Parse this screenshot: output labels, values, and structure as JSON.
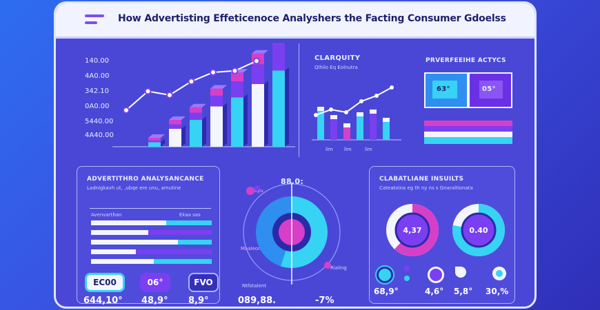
{
  "header": {
    "title": "How Advertisting Effeticenoce Analyshers the Facting Consumer Gdoelss"
  },
  "top_left_chart": {
    "y_ticks": [
      "140.00",
      "4A0.00",
      "342.10",
      "0A0.00",
      "5440.00",
      "4A40.00"
    ],
    "series": [
      {
        "name": "cyan",
        "values": [
          0.05,
          0.2,
          0.3,
          0.45,
          0.55,
          0.7,
          0.85
        ]
      },
      {
        "name": "violet",
        "values": [
          0.02,
          0.05,
          0.08,
          0.12,
          0.18,
          0.22,
          0.3
        ]
      },
      {
        "name": "pink",
        "values": [
          0.03,
          0.05,
          0.06,
          0.08,
          0.1,
          0.12,
          0.15
        ]
      }
    ],
    "line": [
      0.3,
      0.55,
      0.5,
      0.68,
      0.8,
      0.82,
      0.95
    ]
  },
  "clarity_panel": {
    "title": "CLARQUITY",
    "subtitle": "Qlhilo Eq Eolnutra",
    "x_ticks": [
      "lim",
      "lim",
      "lim"
    ],
    "bars": [
      0.6,
      0.45,
      0.3,
      0.5,
      0.55,
      0.4
    ],
    "line": [
      0.45,
      0.55,
      0.5,
      0.7,
      0.8,
      0.95
    ]
  },
  "metrics_panel": {
    "title": "PRVERFEEIHE ACTYCS",
    "tile1": "63°",
    "tile2": "05°"
  },
  "advertising_panel": {
    "title": "ADVERTITHRO ANALYSANCANCE",
    "subtitle": "Ladnigkavh ut, ,ubqe ere unu, amutine",
    "col1": "Avenvarthan",
    "col2": "Ekaa sas",
    "bar_levels": [
      0.85,
      0.7,
      0.95,
      0.6,
      0.75
    ]
  },
  "summary_pills": [
    {
      "label": "EC00",
      "value": "644,10°"
    },
    {
      "label": "06°",
      "value": "48,9°"
    },
    {
      "label": "FVO",
      "value": "8,9°"
    }
  ],
  "donut_panel": {
    "title": "88.0:",
    "label_tl": "Malliyu",
    "label_bl": "Maaleon",
    "label_br": "Rialing",
    "note": "Ntfotalent",
    "footer_left": "089,88.",
    "footer_right": "-7%",
    "slices": [
      0.55,
      0.45
    ]
  },
  "insights_panel": {
    "title": "CLABATLIANE INSUILTS",
    "subtitle": "Cateatoina eg th ny ns s Gnaraltionata",
    "donut1": {
      "label": "4,37",
      "value": 0.62
    },
    "donut2": {
      "label": "0.40",
      "value": 0.78
    },
    "stats": [
      "68,9°",
      "4,6°",
      "5,8°",
      "30,%"
    ]
  },
  "colors": {
    "cyan": "#36d3f5",
    "violet": "#7a3ff0",
    "pink": "#d63fc8",
    "light": "#f4f6ff",
    "navy": "#2a2aa8"
  }
}
